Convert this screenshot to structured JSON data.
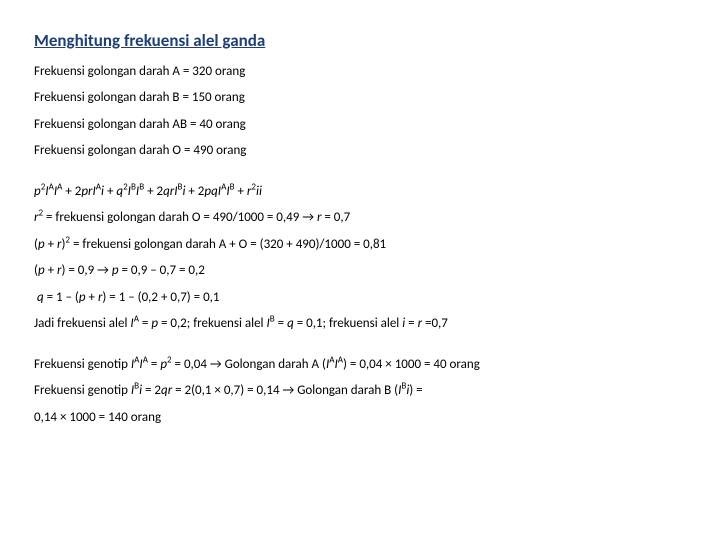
{
  "title": "Menghitung frekuensi alel ganda",
  "freq": {
    "a": "Frekuensi golongan darah A = 320 orang",
    "b": "Frekuensi golongan darah B = 150 orang",
    "ab": "Frekuensi golongan darah AB = 40 orang",
    "o": "Frekuensi golongan darah O = 490 orang"
  },
  "formula": "p²IᴬIᴬ + 2prIᴬi + q²IᴮIᴮ + 2qrIᴮi + 2pqIᴬIᴮ + r²ii",
  "calc": {
    "r2": "r² = frekuensi golongan darah O = 490/1000 = 0,49 → r = 0,7",
    "pr2": "(p + r)² = frekuensi golongan darah A + O = (320 + 490)/1000 = 0,81",
    "pr": "(p + r) = 0,9 → p = 0,9 – 0,7 = 0,2",
    "q": " q = 1 – (p + r) = 1 – (0,2 + 0,7) = 0,1",
    "jadi": "Jadi frekuensi alel Iᴬ = p = 0,2; frekuensi alel Iᴮ = q = 0,1; frekuensi alel i = r = 0,7"
  },
  "geno": {
    "a": "Frekuensi genotip IᴬIᴬ = p² = 0,04 → Golongan darah A (IᴬIᴬ) = 0,04 × 1000 = 40 orang",
    "b": "Frekuensi genotip Iᴮi = 2qr = 2(0,1 × 0,7) = 0,14 → Golongan darah B (Iᴮi) =",
    "b2": "0,14 × 1000 = 140 orang"
  }
}
